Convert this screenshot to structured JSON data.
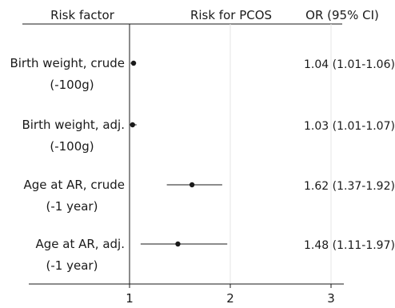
{
  "chart_data": {
    "type": "forest",
    "headers": {
      "label_column": "Risk factor",
      "plot_column": "Risk for PCOS",
      "ci_column": "OR (95% CI)"
    },
    "xlim": [
      1,
      3
    ],
    "x_ticks": [
      "1",
      "2",
      "3"
    ],
    "reference_line": 1,
    "grid": "vertical lines at 2 and 3",
    "rows": [
      {
        "label_line1": "Birth weight, crude",
        "label_line2": "(-100g)",
        "or": 1.04,
        "ci_low": 1.01,
        "ci_high": 1.06,
        "ci_text": "1.04 (1.01-1.06)"
      },
      {
        "label_line1": "Birth weight, adj.",
        "label_line2": "(-100g)",
        "or": 1.03,
        "ci_low": 1.01,
        "ci_high": 1.07,
        "ci_text": "1.03 (1.01-1.07)"
      },
      {
        "label_line1": "Age at AR, crude",
        "label_line2": "(-1 year)",
        "or": 1.62,
        "ci_low": 1.37,
        "ci_high": 1.92,
        "ci_text": "1.62 (1.37-1.92)"
      },
      {
        "label_line1": "Age at AR, adj.",
        "label_line2": "(-1 year)",
        "or": 1.48,
        "ci_low": 1.11,
        "ci_high": 1.97,
        "ci_text": "1.48 (1.11-1.97)"
      }
    ]
  }
}
